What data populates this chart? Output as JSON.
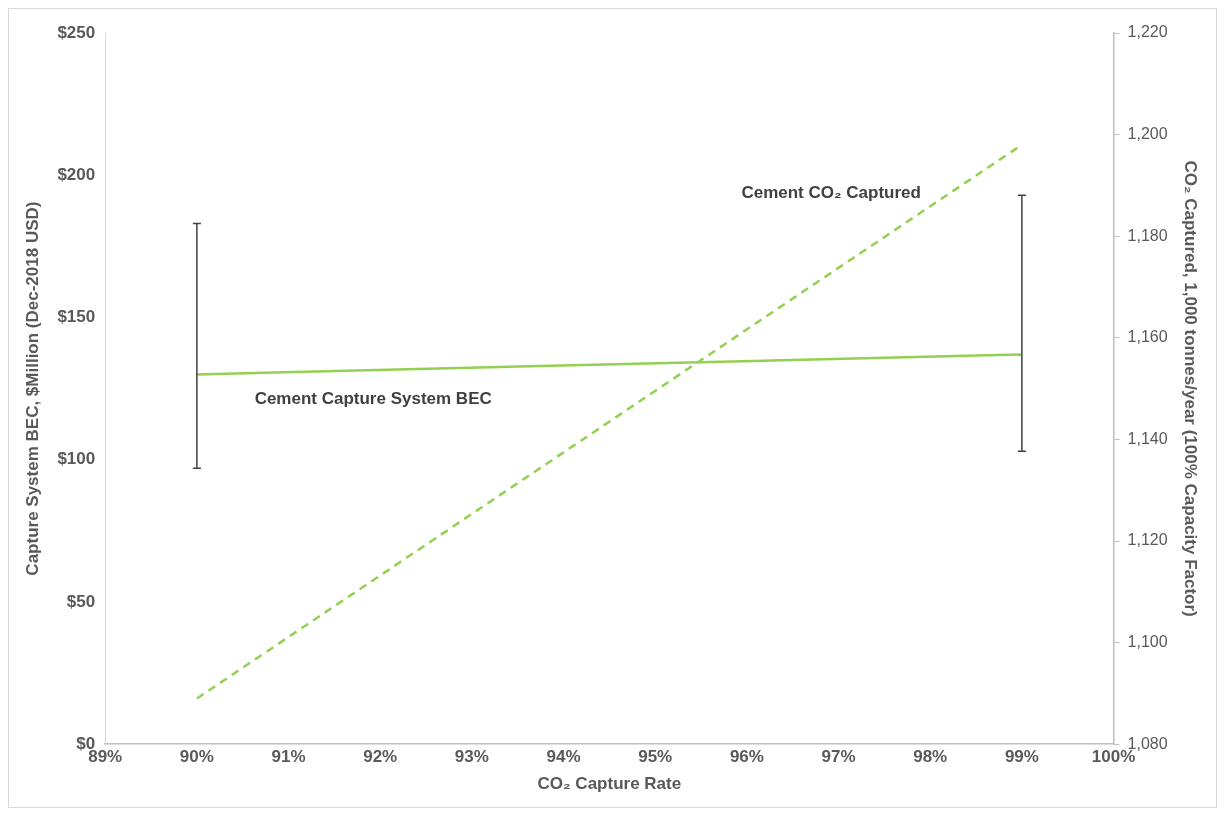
{
  "chart_data": {
    "type": "line",
    "xlabel": "CO₂ Capture Rate",
    "ylabel": "Capture System BEC, $Million (Dec-2018 USD)",
    "y2label": "CO₂ Captured, 1,000 tonnes/year (100% Capacity Factor)",
    "x": [
      90,
      99
    ],
    "xlim": [
      89,
      100
    ],
    "xticks": [
      {
        "value": 89,
        "label": "89%"
      },
      {
        "value": 90,
        "label": "90%"
      },
      {
        "value": 91,
        "label": "91%"
      },
      {
        "value": 92,
        "label": "92%"
      },
      {
        "value": 93,
        "label": "93%"
      },
      {
        "value": 94,
        "label": "94%"
      },
      {
        "value": 95,
        "label": "95%"
      },
      {
        "value": 96,
        "label": "96%"
      },
      {
        "value": 97,
        "label": "97%"
      },
      {
        "value": 98,
        "label": "98%"
      },
      {
        "value": 99,
        "label": "99%"
      },
      {
        "value": 100,
        "label": "100%"
      }
    ],
    "ylim": [
      0,
      250
    ],
    "yticks": [
      {
        "value": 0,
        "label": "$0"
      },
      {
        "value": 50,
        "label": "$50"
      },
      {
        "value": 100,
        "label": "$100"
      },
      {
        "value": 150,
        "label": "$150"
      },
      {
        "value": 200,
        "label": "$200"
      },
      {
        "value": 250,
        "label": "$250"
      }
    ],
    "y2lim": [
      1080,
      1220
    ],
    "y2ticks": [
      {
        "value": 1080,
        "label": "1,080"
      },
      {
        "value": 1100,
        "label": "1,100"
      },
      {
        "value": 1120,
        "label": "1,120"
      },
      {
        "value": 1140,
        "label": "1,140"
      },
      {
        "value": 1160,
        "label": "1,160"
      },
      {
        "value": 1180,
        "label": "1,180"
      },
      {
        "value": 1200,
        "label": "1,200"
      },
      {
        "value": 1220,
        "label": "1,220"
      }
    ],
    "series": [
      {
        "name": "Cement Capture System BEC",
        "color": "#92d050",
        "values": [
          130,
          137
        ],
        "errors": [
          [
            97,
            183
          ],
          [
            103,
            193
          ]
        ],
        "line_style": "solid"
      },
      {
        "name": "Cement CO₂ Captured",
        "color": "#92d050",
        "values": [
          1089,
          1198
        ],
        "axis": "y2",
        "line_style": "dashed"
      }
    ],
    "grid": false,
    "legend": false,
    "marker": "none"
  }
}
